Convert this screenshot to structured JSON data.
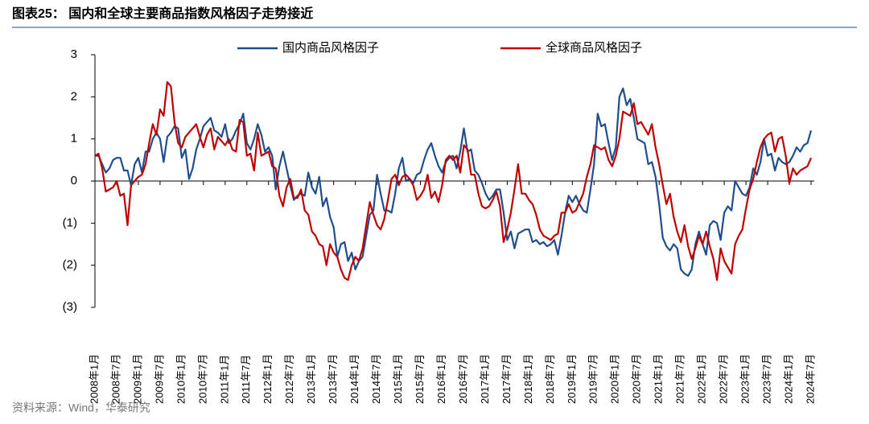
{
  "chart_data": {
    "type": "line",
    "title": "图表25：  国内和全球主要商品指数风格因子走势接近",
    "source": "资料来源：Wind，华泰研究",
    "categories": [
      "2008年1月",
      null,
      null,
      null,
      null,
      null,
      "2008年7月",
      null,
      null,
      null,
      null,
      null,
      "2009年1月",
      null,
      null,
      null,
      null,
      null,
      "2009年7月",
      null,
      null,
      null,
      null,
      null,
      "2010年1月",
      null,
      null,
      null,
      null,
      null,
      "2010年7月",
      null,
      null,
      null,
      null,
      null,
      "2011年1月",
      null,
      null,
      null,
      null,
      null,
      "2011年7月",
      null,
      null,
      null,
      null,
      null,
      "2012年1月",
      null,
      null,
      null,
      null,
      null,
      "2012年7月",
      null,
      null,
      null,
      null,
      null,
      "2013年1月",
      null,
      null,
      null,
      null,
      null,
      "2013年7月",
      null,
      null,
      null,
      null,
      null,
      "2014年1月",
      null,
      null,
      null,
      null,
      null,
      "2014年7月",
      null,
      null,
      null,
      null,
      null,
      "2015年1月",
      null,
      null,
      null,
      null,
      null,
      "2015年7月",
      null,
      null,
      null,
      null,
      null,
      "2016年1月",
      null,
      null,
      null,
      null,
      null,
      "2016年7月",
      null,
      null,
      null,
      null,
      null,
      "2017年1月",
      null,
      null,
      null,
      null,
      null,
      "2017年7月",
      null,
      null,
      null,
      null,
      null,
      "2018年1月",
      null,
      null,
      null,
      null,
      null,
      "2018年7月",
      null,
      null,
      null,
      null,
      null,
      "2019年1月",
      null,
      null,
      null,
      null,
      null,
      "2019年7月",
      null,
      null,
      null,
      null,
      null,
      "2020年1月",
      null,
      null,
      null,
      null,
      null,
      "2020年7月",
      null,
      null,
      null,
      null,
      null,
      "2021年1月",
      null,
      null,
      null,
      null,
      null,
      "2021年7月",
      null,
      null,
      null,
      null,
      null,
      "2022年1月",
      null,
      null,
      null,
      null,
      null,
      "2022年7月",
      null,
      null,
      null,
      null,
      null,
      "2023年1月",
      null,
      null,
      null,
      null,
      null,
      "2023年7月",
      null,
      null,
      null,
      null,
      null,
      "2024年1月",
      null,
      null,
      null,
      null,
      null,
      "2024年7月"
    ],
    "series": [
      {
        "name": "国内商品风格因子",
        "color": "#1f4e8c",
        "values": [
          0.6,
          0.6,
          0.4,
          0.2,
          0.3,
          0.5,
          0.55,
          0.55,
          0.25,
          0.25,
          -0.1,
          0.4,
          0.55,
          0.2,
          0.7,
          0.7,
          1.0,
          1.15,
          1.0,
          0.45,
          1.05,
          1.15,
          1.3,
          1.25,
          0.55,
          0.75,
          0.05,
          0.3,
          0.75,
          1.0,
          1.3,
          1.4,
          1.5,
          1.2,
          1.15,
          1.05,
          1.35,
          0.9,
          1.0,
          1.2,
          1.35,
          1.6,
          0.9,
          0.75,
          1.0,
          1.35,
          1.1,
          0.7,
          0.8,
          0.6,
          -0.2,
          0.35,
          0.7,
          0.3,
          -0.1,
          -0.45,
          -0.35,
          -0.3,
          -0.35,
          0.2,
          -0.15,
          -0.3,
          0.1,
          -0.6,
          -0.4,
          -0.85,
          -1.1,
          -1.8,
          -1.5,
          -1.45,
          -1.9,
          -1.7,
          -2.1,
          -1.9,
          -1.8,
          -1.3,
          -0.8,
          -0.7,
          0.15,
          -0.3,
          -0.7,
          -0.7,
          -0.75,
          -0.3,
          0.3,
          0.55,
          0.0,
          0.05,
          -0.05,
          0.15,
          0.2,
          0.5,
          0.75,
          0.9,
          0.6,
          0.35,
          0.2,
          0.45,
          0.55,
          0.6,
          0.3,
          0.7,
          1.25,
          0.7,
          0.75,
          0.25,
          0.15,
          -0.05,
          -0.3,
          -0.45,
          -0.35,
          -0.2,
          -0.2,
          -0.75,
          -1.4,
          -1.2,
          -1.6,
          -1.25,
          -1.2,
          -1.15,
          -1.15,
          -1.45,
          -1.4,
          -1.5,
          -1.45,
          -1.55,
          -1.5,
          -1.4,
          -1.75,
          -1.3,
          -0.75,
          -0.35,
          -0.5,
          -0.35,
          -0.55,
          -0.7,
          -0.75,
          -0.2,
          0.4,
          1.6,
          1.3,
          1.35,
          0.9,
          0.5,
          0.8,
          2.0,
          2.2,
          1.8,
          1.95,
          1.5,
          1.0,
          0.95,
          0.9,
          0.4,
          0.45,
          0.1,
          -0.55,
          -1.35,
          -1.55,
          -1.65,
          -1.5,
          -1.6,
          -2.1,
          -2.2,
          -2.25,
          -2.1,
          -1.5,
          -1.2,
          -1.5,
          -1.75,
          -1.05,
          -0.95,
          -1.0,
          -1.4,
          -0.75,
          -0.6,
          -0.7,
          0.0,
          -0.15,
          -0.3,
          -0.35,
          -0.15,
          0.3,
          0.15,
          0.45,
          1.0,
          0.6,
          0.65,
          0.25,
          0.55,
          0.45,
          0.4,
          0.45,
          0.6,
          0.8,
          0.7,
          0.85,
          0.9,
          1.2
        ]
      },
      {
        "name": "全球商品风格因子",
        "color": "#c00000",
        "values": [
          0.6,
          0.65,
          0.3,
          -0.25,
          -0.2,
          -0.15,
          0.0,
          -0.35,
          -0.3,
          -1.05,
          -0.1,
          0.0,
          0.1,
          0.15,
          0.4,
          0.9,
          1.35,
          1.1,
          1.7,
          1.55,
          2.35,
          2.25,
          1.4,
          0.9,
          0.8,
          1.05,
          1.15,
          1.25,
          1.35,
          1.05,
          0.8,
          1.1,
          1.25,
          0.75,
          1.05,
          0.95,
          0.85,
          1.0,
          0.75,
          0.7,
          1.45,
          1.4,
          0.6,
          0.65,
          0.25,
          1.15,
          0.6,
          0.65,
          0.7,
          0.35,
          0.3,
          -0.35,
          -0.6,
          -0.15,
          0.05,
          -0.4,
          -0.4,
          -0.2,
          -0.7,
          -0.8,
          -1.2,
          -1.3,
          -1.5,
          -1.55,
          -2.0,
          -1.5,
          -1.7,
          -1.8,
          -2.1,
          -2.3,
          -2.35,
          -2.0,
          -1.8,
          -1.9,
          -1.6,
          -1.05,
          -0.5,
          -0.8,
          -1.05,
          -1.15,
          -0.9,
          -0.45,
          0.05,
          0.15,
          -0.1,
          0.1,
          0.15,
          0.05,
          -0.1,
          -0.45,
          -0.35,
          -0.2,
          0.15,
          -0.4,
          -0.25,
          -0.5,
          -0.1,
          0.5,
          0.6,
          0.5,
          0.6,
          0.2,
          0.85,
          0.75,
          0.15,
          0.15,
          -0.3,
          -0.6,
          -0.65,
          -0.6,
          -0.45,
          -0.25,
          -0.6,
          -1.45,
          -1.15,
          -0.75,
          -0.2,
          0.4,
          -0.3,
          -0.3,
          -0.45,
          -0.55,
          -0.8,
          -1.15,
          -1.3,
          -1.35,
          -1.4,
          -1.3,
          -1.25,
          -0.75,
          -0.75,
          -0.55,
          -0.75,
          -0.7,
          -0.5,
          -0.3,
          0.1,
          0.4,
          0.85,
          0.8,
          0.75,
          0.8,
          0.5,
          0.35,
          0.6,
          1.0,
          1.65,
          1.6,
          1.55,
          1.85,
          1.35,
          1.4,
          1.25,
          1.1,
          1.35,
          0.8,
          0.4,
          -0.1,
          -0.55,
          -0.3,
          -0.85,
          -1.2,
          -1.45,
          -1.05,
          -1.55,
          -1.85,
          -1.6,
          -1.3,
          -1.5,
          -1.2,
          -1.55,
          -1.85,
          -2.35,
          -1.6,
          -1.9,
          -2.05,
          -2.2,
          -1.5,
          -1.3,
          -1.15,
          -0.65,
          -0.2,
          0.05,
          0.45,
          0.8,
          1.0,
          1.1,
          1.15,
          0.7,
          1.0,
          1.05,
          0.6,
          -0.05,
          0.3,
          0.15,
          0.25,
          0.3,
          0.35,
          0.55
        ]
      }
    ],
    "ylim": [
      -3,
      3
    ],
    "yticks": [
      {
        "value": -3,
        "label": "(3)"
      },
      {
        "value": -2,
        "label": "(2)"
      },
      {
        "value": -1,
        "label": "(1)"
      },
      0,
      1,
      2,
      3
    ],
    "grid": false
  }
}
